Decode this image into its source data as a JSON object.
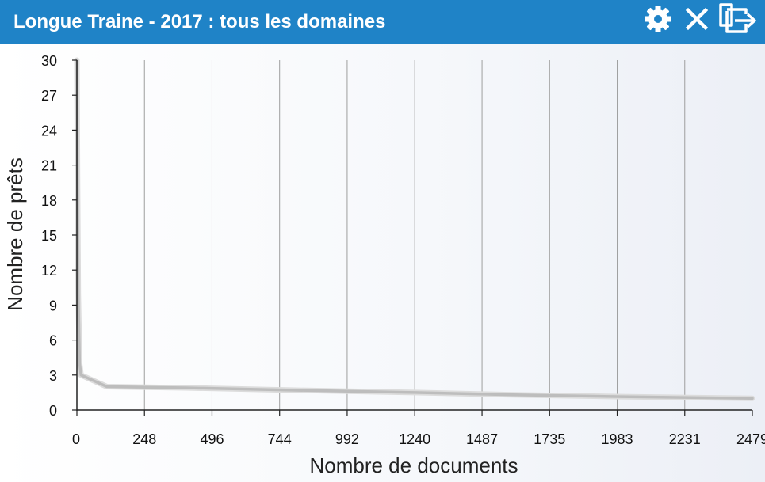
{
  "window": {
    "title": "Longue Traine - 2017 : tous les domaines",
    "controls": [
      {
        "icon": "gear-icon",
        "name": "settings-button"
      },
      {
        "icon": "close-icon",
        "name": "close-button"
      },
      {
        "icon": "export-icon",
        "name": "detach-button"
      }
    ],
    "colors": {
      "titlebar": "#1f83c7",
      "titlebar_text": "#ffffff",
      "line": "#bdbdbd",
      "grid": "#9e9e9e"
    }
  },
  "chart_data": {
    "type": "line",
    "title": "",
    "xlabel": "Nombre de documents",
    "ylabel": "Nombre de prêts",
    "x_ticks": [
      "0",
      "248",
      "496",
      "744",
      "992",
      "1240",
      "1487",
      "1735",
      "1983",
      "2231",
      "2479"
    ],
    "y_ticks": [
      "0",
      "3",
      "6",
      "9",
      "12",
      "15",
      "18",
      "21",
      "24",
      "27",
      "30"
    ],
    "xlim": [
      0,
      2479
    ],
    "ylim": [
      0,
      30
    ],
    "grid": "vertical",
    "legend": "none",
    "series": [
      {
        "x": [
          0,
          2,
          5,
          10,
          15,
          110,
          400,
          800,
          1240,
          1600,
          2000,
          2479
        ],
        "y": [
          30,
          20,
          10,
          4,
          3,
          2,
          1.9,
          1.7,
          1.5,
          1.3,
          1.15,
          1
        ]
      }
    ]
  }
}
